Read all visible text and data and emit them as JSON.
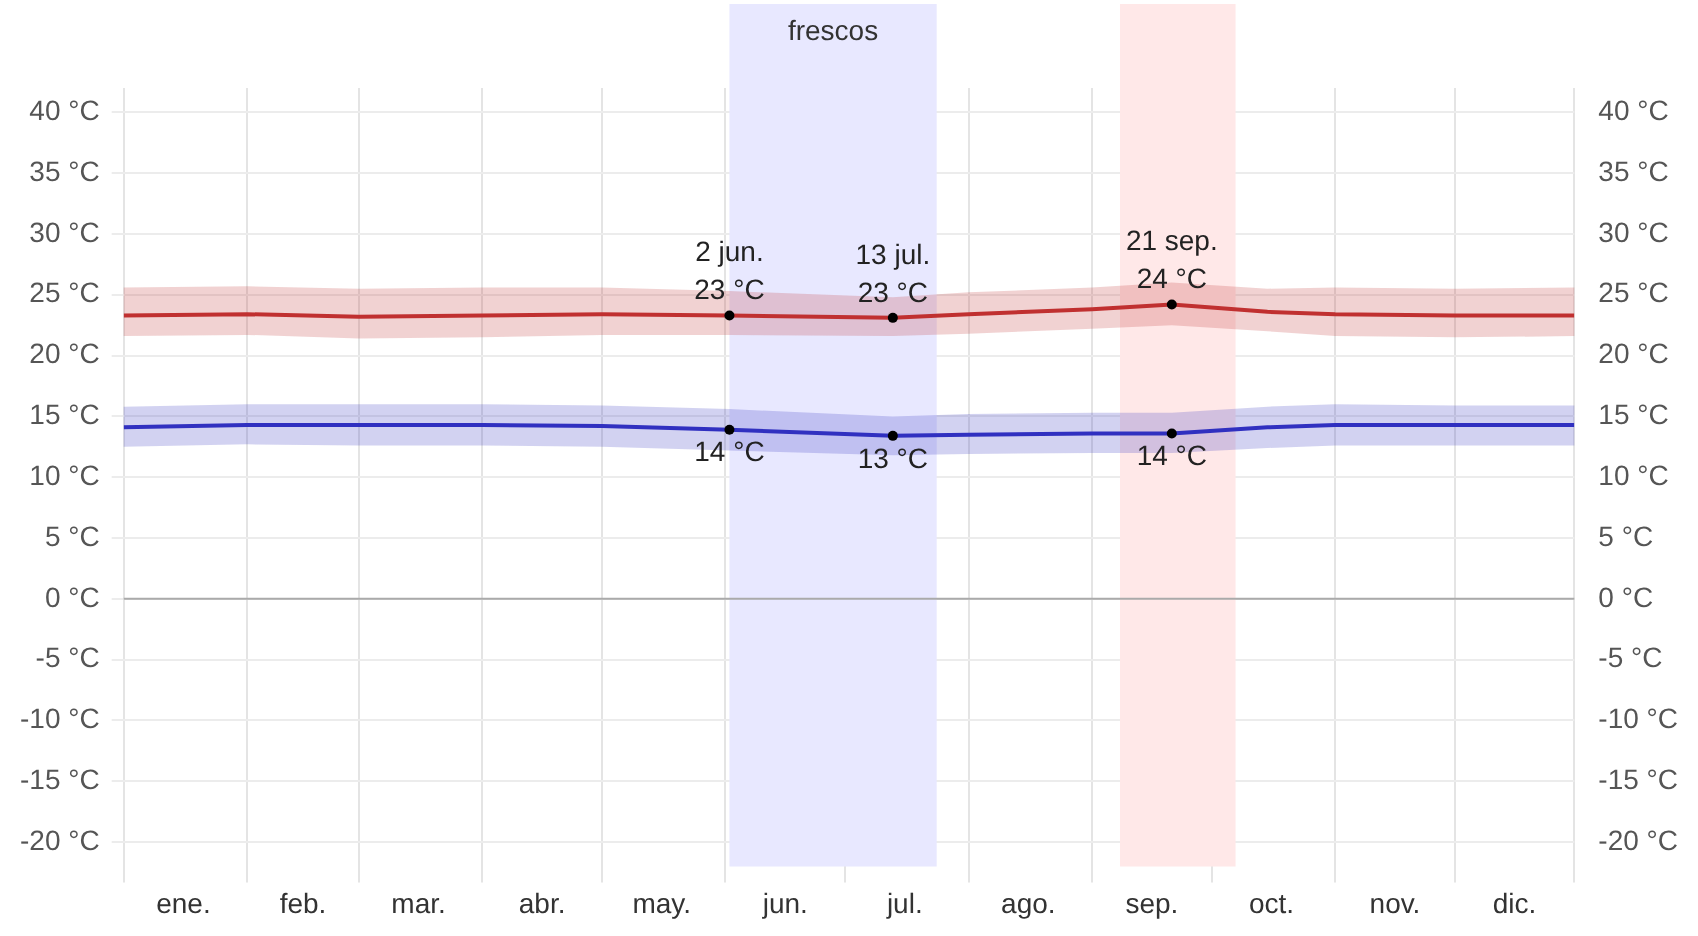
{
  "chart_data": {
    "type": "line",
    "x": [
      "--01-01",
      "--02-01",
      "--03-01",
      "--04-01",
      "--05-01",
      "--06-02",
      "--07-13",
      "--08-01",
      "--09-01",
      "--09-21",
      "--10-15",
      "--11-01",
      "--12-01",
      "--12-31"
    ],
    "series": [
      {
        "color": "#c03030",
        "values": [
          23.3,
          23.4,
          23.2,
          23.3,
          23.4,
          23.3,
          23.1,
          23.4,
          23.8,
          24.2,
          23.6,
          23.4,
          23.3,
          23.3
        ],
        "lower": [
          21.6,
          21.7,
          21.4,
          21.5,
          21.7,
          21.7,
          21.6,
          21.8,
          22.2,
          22.5,
          22.0,
          21.6,
          21.5,
          21.6
        ],
        "upper": [
          25.6,
          25.7,
          25.5,
          25.6,
          25.6,
          25.3,
          24.8,
          25.2,
          25.6,
          26.0,
          25.5,
          25.6,
          25.5,
          25.6
        ]
      },
      {
        "color": "#3030c0",
        "values": [
          14.1,
          14.3,
          14.3,
          14.3,
          14.2,
          13.9,
          13.4,
          13.5,
          13.6,
          13.6,
          14.1,
          14.3,
          14.3,
          14.3
        ],
        "lower": [
          12.5,
          12.7,
          12.6,
          12.6,
          12.5,
          12.2,
          11.8,
          11.9,
          12.0,
          12.0,
          12.4,
          12.6,
          12.6,
          12.6
        ],
        "upper": [
          15.8,
          16.0,
          16.0,
          16.0,
          15.9,
          15.6,
          15.0,
          15.2,
          15.3,
          15.3,
          15.8,
          16.0,
          15.9,
          15.9
        ]
      }
    ],
    "xlim": [
      "--01-01",
      "--12-31"
    ],
    "xticks": [
      {
        "value": "--01-01",
        "label": null
      },
      {
        "value": "--01-16",
        "label": "ene."
      },
      {
        "value": "--02-01",
        "label": null
      },
      {
        "value": "--02-15",
        "label": "feb."
      },
      {
        "value": "--03-01",
        "label": null
      },
      {
        "value": "--03-16",
        "label": "mar."
      },
      {
        "value": "--04-01",
        "label": null
      },
      {
        "value": "--04-16",
        "label": "abr."
      },
      {
        "value": "--05-01",
        "label": null
      },
      {
        "value": "--05-16",
        "label": "may."
      },
      {
        "value": "--06-01",
        "label": null
      },
      {
        "value": "--06-16",
        "label": "jun."
      },
      {
        "value": "--07-01",
        "label": null
      },
      {
        "value": "--07-16",
        "label": "jul."
      },
      {
        "value": "--08-01",
        "label": null
      },
      {
        "value": "--08-16",
        "label": "ago."
      },
      {
        "value": "--09-01",
        "label": null
      },
      {
        "value": "--09-16",
        "label": "sep."
      },
      {
        "value": "--10-01",
        "label": null
      },
      {
        "value": "--10-16",
        "label": "oct."
      },
      {
        "value": "--11-01",
        "label": null
      },
      {
        "value": "--11-16",
        "label": "nov."
      },
      {
        "value": "--12-01",
        "label": null
      },
      {
        "value": "--12-16",
        "label": "dic."
      },
      {
        "value": "--12-31",
        "label": null
      }
    ],
    "ylim": [
      -22,
      42
    ],
    "yticks": [
      {
        "value": -20,
        "label": "-20 °C"
      },
      {
        "value": -15,
        "label": "-15 °C"
      },
      {
        "value": -10,
        "label": "-10 °C"
      },
      {
        "value": -5,
        "label": "-5 °C"
      },
      {
        "value": 0,
        "label": "0 °C"
      },
      {
        "value": 5,
        "label": "5 °C"
      },
      {
        "value": 10,
        "label": "10 °C"
      },
      {
        "value": 15,
        "label": "15 °C"
      },
      {
        "value": 20,
        "label": "20 °C"
      },
      {
        "value": 25,
        "label": "25 °C"
      },
      {
        "value": 30,
        "label": "30 °C"
      },
      {
        "value": 35,
        "label": "35 °C"
      },
      {
        "value": 40,
        "label": "40 °C"
      }
    ],
    "y2lim": [
      -22,
      42
    ],
    "y2ticks": [
      {
        "value": -20,
        "label": "-20 °C"
      },
      {
        "value": -15,
        "label": "-15 °C"
      },
      {
        "value": -10,
        "label": "-10 °C"
      },
      {
        "value": -5,
        "label": "-5 °C"
      },
      {
        "value": 0,
        "label": "0 °C"
      },
      {
        "value": 5,
        "label": "5 °C"
      },
      {
        "value": 10,
        "label": "10 °C"
      },
      {
        "value": 15,
        "label": "15 °C"
      },
      {
        "value": 20,
        "label": "20 °C"
      },
      {
        "value": 25,
        "label": "25 °C"
      },
      {
        "value": 30,
        "label": "30 °C"
      },
      {
        "value": 35,
        "label": "35 °C"
      },
      {
        "value": 40,
        "label": "40 °C"
      }
    ],
    "bands": [
      {
        "axis": "x",
        "from": "--06-02",
        "to": "--07-24",
        "label": "frescos",
        "color": "#e8e8ff"
      },
      {
        "axis": "x",
        "from": "--09-08",
        "to": "--10-07",
        "color": "#ffe8e8"
      }
    ],
    "ref_lines": [
      {
        "axis": "y",
        "value": 0,
        "color": "#aaaaaa"
      }
    ],
    "annotations": [
      {
        "text": "2 jun.\n23 °C",
        "x": "--06-02",
        "y": 23.3
      },
      {
        "text": "13 jul.\n23 °C",
        "x": "--07-13",
        "y": 23.1
      },
      {
        "text": "21 sep.\n24 °C",
        "x": "--09-21",
        "y": 24.2
      },
      {
        "text": "14 °C",
        "x": "--06-02",
        "y": 13.9
      },
      {
        "text": "13 °C",
        "x": "--07-13",
        "y": 13.4
      },
      {
        "text": "14 °C",
        "x": "--09-21",
        "y": 13.6
      }
    ],
    "grid": true,
    "legend": false,
    "marker": "none",
    "line_style": "solid"
  }
}
